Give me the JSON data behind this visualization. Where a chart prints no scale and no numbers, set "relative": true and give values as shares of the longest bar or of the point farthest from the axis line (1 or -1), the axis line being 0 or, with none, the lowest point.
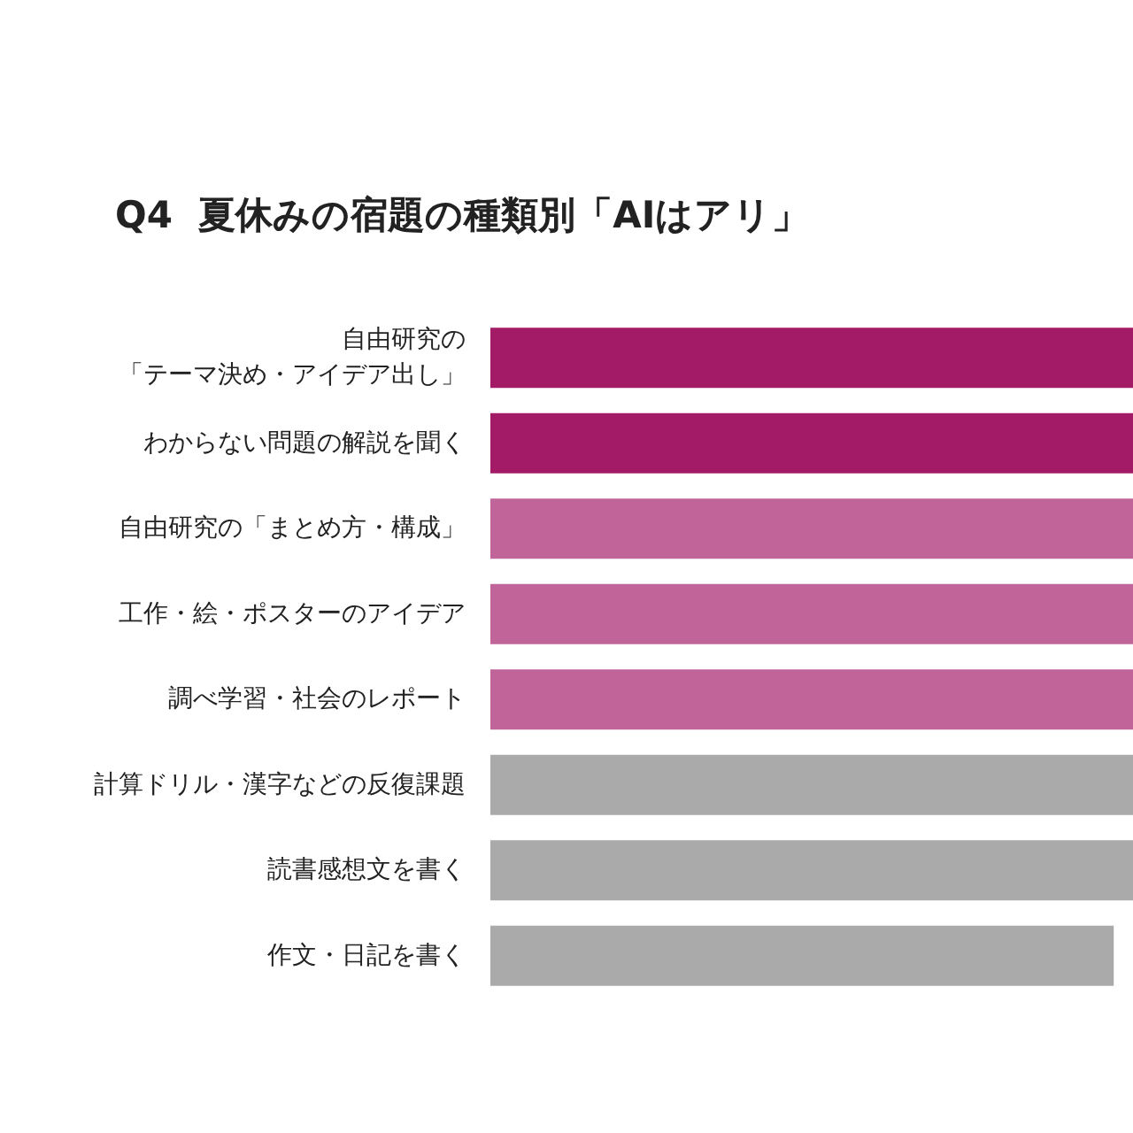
{
  "chart_data": {
    "type": "bar",
    "orientation": "horizontal",
    "relative": true,
    "title": "Q4  夏休みの宿題の種類別「AIはアリ」",
    "categories": [
      "自由研究の「テーマ決め・アイデア出し」",
      "わからない問題の解説を聞く",
      "自由研究の「まとめ方・構成」",
      "工作・絵・ポスターのアイデア",
      "調べ学習・社会のレポート",
      "計算ドリル・漢字などの反復課題",
      "読書感想文を書く",
      "作文・日記を書く"
    ],
    "values": [
      1,
      1,
      1,
      1,
      1,
      1,
      1,
      0.97
    ],
    "colors": [
      "#a31a66",
      "#a31a66",
      "#c0649a",
      "#c0649a",
      "#c0649a",
      "#aaaaaa",
      "#aaaaaa",
      "#aaaaaa"
    ]
  }
}
